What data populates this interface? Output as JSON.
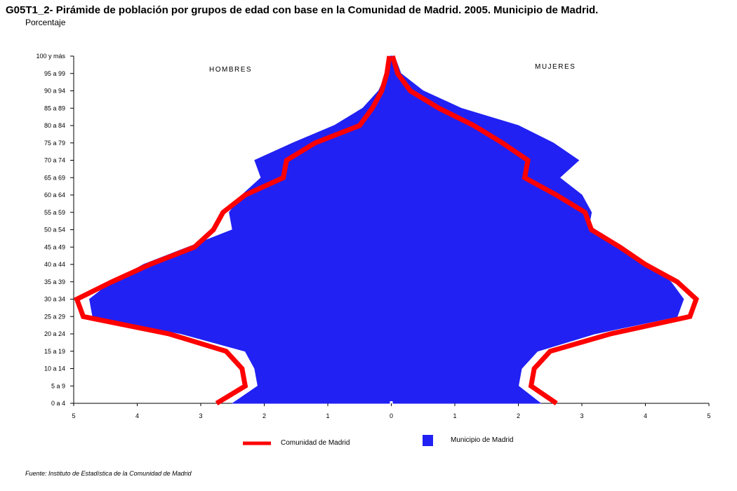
{
  "title": "G05T1_2- Pirámide de población por grupos de edad con base en la Comunidad de Madrid.  2005. Municipio de Madrid.",
  "subtitle": "Porcentaje",
  "source": "Fuente: Instituto de Estadística de la Comunidad de Madrid",
  "chart_data": {
    "type": "area",
    "orientation": "population-pyramid",
    "categories": [
      "0 a 4",
      "5 a 9",
      "10 a 14",
      "15 a 19",
      "20 a 24",
      "25 a 29",
      "30 a 34",
      "35 a 39",
      "40 a 44",
      "45 a 49",
      "50 a 54",
      "55 a 59",
      "60 a 64",
      "65 a 69",
      "70 a 74",
      "75 a 79",
      "80 a 84",
      "85 a 89",
      "90 a 94",
      "95 a 99",
      "100 y más"
    ],
    "xticks": [
      "5",
      "4",
      "3",
      "2",
      "1",
      "0",
      "1",
      "2",
      "3",
      "4",
      "5"
    ],
    "xlim": [
      -5,
      5
    ],
    "side_labels": {
      "left": "HOMBRES",
      "right": "MUJERES"
    },
    "series": [
      {
        "name": "Municipio de Madrid",
        "style": "filled-area",
        "color": "#2121f4",
        "men": [
          2.5,
          2.1,
          2.15,
          2.3,
          3.3,
          4.7,
          4.75,
          4.4,
          3.9,
          3.2,
          2.5,
          2.55,
          2.35,
          2.05,
          2.15,
          1.55,
          0.9,
          0.45,
          0.2,
          0.07,
          0.02
        ],
        "women": [
          2.35,
          2.0,
          2.05,
          2.3,
          3.2,
          4.5,
          4.6,
          4.4,
          4.05,
          3.55,
          3.1,
          3.15,
          3.0,
          2.65,
          2.95,
          2.55,
          2.0,
          1.1,
          0.5,
          0.15,
          0.05
        ]
      },
      {
        "name": "Comunidad de Madrid",
        "style": "line",
        "color": "#ff0000",
        "men": [
          2.75,
          2.3,
          2.35,
          2.6,
          3.5,
          4.85,
          4.95,
          4.4,
          3.8,
          3.1,
          2.8,
          2.65,
          2.3,
          1.7,
          1.65,
          1.2,
          0.5,
          0.3,
          0.15,
          0.07,
          0.03
        ],
        "women": [
          2.6,
          2.2,
          2.25,
          2.5,
          3.45,
          4.7,
          4.8,
          4.5,
          4.0,
          3.6,
          3.15,
          3.05,
          2.6,
          2.1,
          2.15,
          1.75,
          1.3,
          0.75,
          0.3,
          0.1,
          0.02
        ]
      }
    ],
    "legend": {
      "placement": "bottom"
    }
  }
}
